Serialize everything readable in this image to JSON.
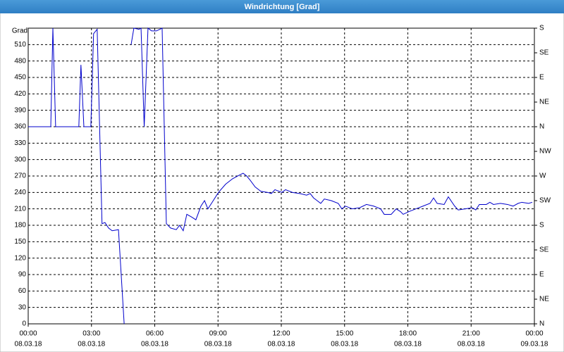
{
  "chart_data": {
    "type": "line",
    "title": "Windrichtung [Grad]",
    "ylabel": "Grad",
    "x": [
      0,
      1.07,
      1.17,
      1.3,
      2.4,
      2.5,
      2.64,
      2.97,
      3.1,
      3.27,
      3.5,
      3.64,
      3.81,
      3.98,
      4.28,
      4.55,
      4.68,
      4.88,
      5.01,
      5.25,
      5.35,
      5.5,
      5.68,
      5.85,
      6.08,
      6.35,
      6.55,
      6.75,
      7.02,
      7.18,
      7.35,
      7.52,
      7.75,
      7.95,
      8.19,
      8.36,
      8.52,
      8.69,
      9.02,
      9.36,
      9.69,
      10.03,
      10.19,
      10.36,
      10.53,
      10.76,
      11.03,
      11.36,
      11.53,
      11.7,
      12.03,
      12.2,
      12.53,
      12.87,
      13.2,
      13.37,
      13.53,
      13.7,
      13.87,
      14.04,
      14.37,
      14.7,
      14.87,
      15.04,
      15.37,
      15.71,
      16.04,
      16.38,
      16.71,
      16.88,
      17.21,
      17.45,
      17.65,
      17.78,
      18.05,
      18.38,
      18.72,
      19.05,
      19.22,
      19.39,
      19.72,
      19.92,
      20.22,
      20.39,
      20.72,
      21.06,
      21.22,
      21.39,
      21.72,
      21.89,
      22.06,
      22.39,
      22.73,
      22.99,
      23.23,
      23.4,
      23.73,
      23.9
    ],
    "series": [
      {
        "name": "Windrichtung",
        "color": "#0000cc",
        "values": [
          360,
          360,
          540,
          360,
          360,
          473,
          360,
          360,
          530,
          538,
          183,
          185,
          175,
          170,
          172,
          0,
          null,
          510,
          540,
          538,
          540,
          360,
          540,
          535,
          535,
          540,
          183,
          175,
          172,
          180,
          170,
          200,
          195,
          190,
          215,
          225,
          210,
          220,
          240,
          255,
          265,
          272,
          275,
          270,
          262,
          250,
          242,
          240,
          238,
          245,
          240,
          245,
          240,
          238,
          235,
          238,
          230,
          225,
          220,
          228,
          225,
          220,
          210,
          215,
          210,
          212,
          218,
          215,
          210,
          200,
          200,
          210,
          205,
          200,
          205,
          210,
          215,
          220,
          230,
          220,
          218,
          232,
          215,
          208,
          210,
          212,
          208,
          218,
          218,
          222,
          218,
          220,
          218,
          215,
          220,
          222,
          220,
          222
        ]
      }
    ],
    "xlim": [
      0,
      24
    ],
    "xticks": [
      {
        "value": 0,
        "label": "00:00"
      },
      {
        "value": 3,
        "label": "03:00"
      },
      {
        "value": 6,
        "label": "06:00"
      },
      {
        "value": 9,
        "label": "09:00"
      },
      {
        "value": 12,
        "label": "12:00"
      },
      {
        "value": 15,
        "label": "15:00"
      },
      {
        "value": 18,
        "label": "18:00"
      },
      {
        "value": 21,
        "label": "21:00"
      },
      {
        "value": 24,
        "label": "00:00"
      }
    ],
    "xtick_dates": [
      "08.03.18",
      "08.03.18",
      "08.03.18",
      "08.03.18",
      "08.03.18",
      "08.03.18",
      "08.03.18",
      "08.03.18",
      "09.03.18"
    ],
    "ylim": [
      0,
      540
    ],
    "yticks": [
      0,
      30,
      60,
      90,
      120,
      150,
      180,
      210,
      240,
      270,
      300,
      330,
      360,
      390,
      420,
      450,
      480,
      510
    ],
    "y2lim": [
      0,
      540
    ],
    "y2ticks": [
      {
        "value": 0,
        "label": "N"
      },
      {
        "value": 45,
        "label": "NE"
      },
      {
        "value": 90,
        "label": "E"
      },
      {
        "value": 135,
        "label": "SE"
      },
      {
        "value": 180,
        "label": "S"
      },
      {
        "value": 225,
        "label": "SW"
      },
      {
        "value": 270,
        "label": "W"
      },
      {
        "value": 315,
        "label": "NW"
      },
      {
        "value": 360,
        "label": "N"
      },
      {
        "value": 405,
        "label": "NE"
      },
      {
        "value": 450,
        "label": "E"
      },
      {
        "value": 495,
        "label": "SE"
      },
      {
        "value": 540,
        "label": "S"
      }
    ],
    "grid": true
  }
}
